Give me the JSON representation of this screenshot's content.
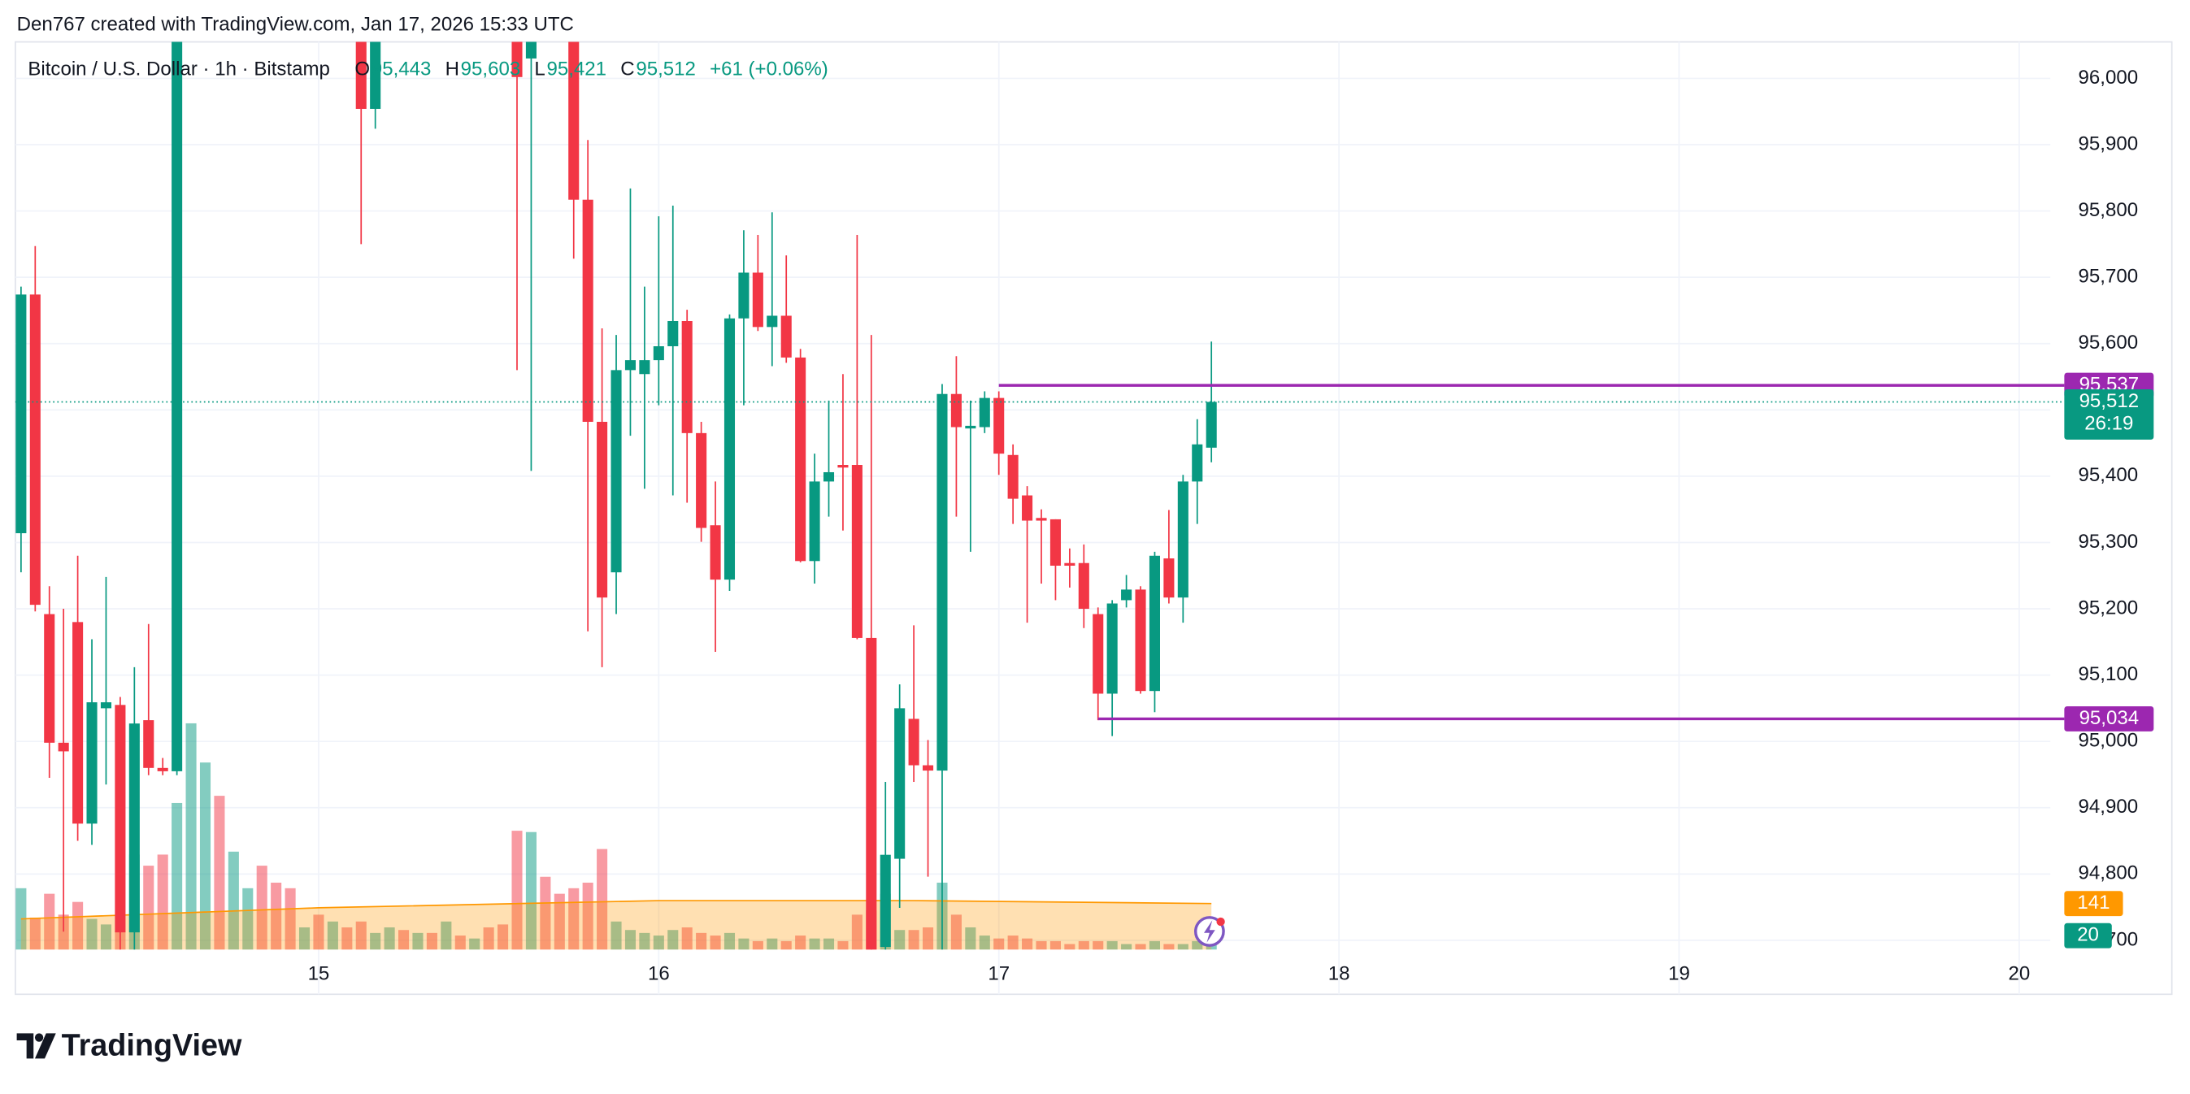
{
  "header": "Den767 created with TradingView.com, Jan 17, 2026 15:33 UTC",
  "footer": {
    "brand": "TradingView"
  },
  "chart_data": {
    "type": "candlestick",
    "title": "Bitcoin / U.S. Dollar · 1h · Bitstamp",
    "ohlc_legend": [
      {
        "key": "O",
        "value": 95443,
        "label": "95,443"
      },
      {
        "key": "H",
        "value": 95603,
        "label": "95,603"
      },
      {
        "key": "L",
        "value": 95421,
        "label": "95,421"
      },
      {
        "key": "C",
        "value": 95512,
        "label": "95,512"
      }
    ],
    "change": "+61 (+0.06%)",
    "up_color": "#089981",
    "down_color": "#f23645",
    "x": [
      3,
      4,
      5,
      6,
      7,
      8,
      9,
      10,
      11,
      12,
      13,
      14,
      27,
      28,
      38,
      39,
      42,
      43,
      44,
      45,
      46,
      47,
      48,
      49,
      50,
      51,
      52,
      53,
      54,
      55,
      56,
      57,
      58,
      59,
      60,
      61,
      62,
      63,
      64,
      65,
      66,
      67,
      68,
      69,
      70,
      71,
      72,
      73,
      74,
      75,
      76,
      77,
      78,
      79,
      80,
      81,
      82,
      83,
      84,
      85,
      86,
      87
    ],
    "open": [
      95314,
      95674,
      95192,
      94998,
      95180,
      94876,
      95050,
      95055,
      94712,
      95032,
      94960,
      94955,
      96060,
      95954,
      96060,
      96030,
      96060,
      95817,
      95482,
      95255,
      95560,
      95554,
      95575,
      95596,
      95634,
      95465,
      95326,
      95244,
      95638,
      95707,
      95625,
      95642,
      95579,
      95272,
      95392,
      95417,
      95417,
      95156,
      94690,
      94823,
      95034,
      94964,
      94956,
      95524,
      95472,
      95474,
      95518,
      95432,
      95371,
      95337,
      95335,
      95269,
      95269,
      95192,
      95072,
      95213,
      95229,
      95076,
      95276,
      95217,
      95392,
      95443
    ],
    "high": [
      95686,
      95747,
      95234,
      95200,
      95280,
      95154,
      95248,
      95067,
      95112,
      95177,
      94975,
      96100,
      96100,
      96100,
      96100,
      96100,
      96100,
      95907,
      95623,
      95613,
      95834,
      95686,
      95792,
      95808,
      95651,
      95482,
      95392,
      95644,
      95771,
      95764,
      95798,
      95733,
      95592,
      95434,
      95514,
      95554,
      95764,
      95613,
      94939,
      95086,
      95175,
      95002,
      95539,
      95581,
      95514,
      95528,
      95528,
      95448,
      95385,
      95350,
      95335,
      95291,
      95297,
      95202,
      95213,
      95251,
      95234,
      95286,
      95349,
      95402,
      95486,
      95603
    ],
    "low": [
      95255,
      95196,
      94945,
      94713,
      94850,
      94844,
      94935,
      94686,
      94686,
      94949,
      94949,
      94949,
      95750,
      95924,
      95560,
      95408,
      95728,
      95166,
      95112,
      95192,
      95461,
      95381,
      95507,
      95371,
      95360,
      95301,
      95135,
      95227,
      95507,
      95619,
      95566,
      95571,
      95270,
      95238,
      95339,
      95318,
      95154,
      94680,
      94686,
      94749,
      94939,
      94796,
      94686,
      95339,
      95286,
      95465,
      95402,
      95328,
      95179,
      95238,
      95213,
      95232,
      95171,
      95032,
      95008,
      95202,
      95072,
      95044,
      95208,
      95179,
      95328,
      95421
    ],
    "close": [
      95674,
      95206,
      94998,
      94985,
      94876,
      95059,
      95059,
      94712,
      95027,
      94960,
      94955,
      96060,
      95954,
      96060,
      96002,
      96060,
      95817,
      95482,
      95217,
      95560,
      95575,
      95575,
      95596,
      95634,
      95465,
      95322,
      95244,
      95638,
      95707,
      95625,
      95642,
      95579,
      95272,
      95392,
      95406,
      95413,
      95156,
      94686,
      94829,
      95050,
      94964,
      94956,
      95524,
      95474,
      95476,
      95518,
      95434,
      95366,
      95333,
      95333,
      95265,
      95265,
      95200,
      95072,
      95208,
      95229,
      95076,
      95280,
      95217,
      95392,
      95448,
      95512
    ],
    "xlim": [
      2.6,
      146.2
    ],
    "xticks": [
      {
        "value": 24,
        "label": "15"
      },
      {
        "value": 48,
        "label": "16"
      },
      {
        "value": 72,
        "label": "17"
      },
      {
        "value": 96,
        "label": "18"
      },
      {
        "value": 120,
        "label": "19"
      },
      {
        "value": 144,
        "label": "20"
      }
    ],
    "ylim": [
      94686,
      96055
    ],
    "yticks": [
      {
        "value": 94700,
        "label": "94,700"
      },
      {
        "value": 94800,
        "label": "94,800"
      },
      {
        "value": 94900,
        "label": "94,900"
      },
      {
        "value": 95000,
        "label": "95,000"
      },
      {
        "value": 95100,
        "label": "95,100"
      },
      {
        "value": 95200,
        "label": "95,200"
      },
      {
        "value": 95300,
        "label": "95,300"
      },
      {
        "value": 95400,
        "label": "95,400"
      },
      {
        "value": 95500,
        "label": "95,500"
      },
      {
        "value": 95600,
        "label": "95,600"
      },
      {
        "value": 95700,
        "label": "95,700"
      },
      {
        "value": 95800,
        "label": "95,800"
      },
      {
        "value": 95900,
        "label": "95,900"
      },
      {
        "value": 96000,
        "label": "96,000"
      }
    ],
    "grid": true,
    "price_lines": [
      {
        "value": 95537,
        "label": "95,537",
        "x": 72,
        "color": "#9c27b0"
      },
      {
        "value": 95034,
        "label": "95,034",
        "x": 79,
        "color": "#9c27b0"
      }
    ],
    "last_price": {
      "value": 95512,
      "label": "95,512",
      "countdown": "26:19",
      "color": "#089981"
    },
    "volume": {
      "vlim": [
        0,
        2780
      ],
      "opacity": 0.5,
      "up": {
        "color": "#089981",
        "x": [
          3,
          8,
          9,
          11,
          14,
          15,
          16,
          18,
          19,
          23,
          25,
          28,
          29,
          31,
          33,
          35,
          39,
          45,
          46,
          47,
          48,
          49,
          53,
          54,
          56,
          59,
          60,
          64,
          65,
          68,
          70,
          71,
          80,
          81,
          83,
          85,
          86,
          87
        ],
        "values": [
          188,
          94,
          77,
          291,
          449,
          693,
          573,
          300,
          188,
          68,
          86,
          51,
          68,
          51,
          86,
          34,
          360,
          86,
          60,
          51,
          43,
          60,
          51,
          34,
          34,
          34,
          34,
          171,
          60,
          205,
          68,
          43,
          26,
          17,
          26,
          17,
          26,
          20
        ]
      },
      "down": {
        "color": "#f23645",
        "x": [
          4,
          5,
          6,
          7,
          10,
          12,
          13,
          17,
          20,
          21,
          22,
          24,
          26,
          27,
          30,
          32,
          34,
          36,
          37,
          38,
          40,
          41,
          42,
          43,
          44,
          50,
          51,
          52,
          55,
          57,
          58,
          61,
          62,
          63,
          66,
          67,
          69,
          72,
          73,
          74,
          75,
          76,
          77,
          78,
          79,
          82,
          84
        ],
        "values": [
          98,
          171,
          107,
          146,
          56,
          257,
          291,
          471,
          257,
          205,
          188,
          107,
          68,
          86,
          60,
          51,
          43,
          68,
          77,
          364,
          223,
          171,
          188,
          205,
          308,
          68,
          51,
          43,
          26,
          26,
          43,
          26,
          107,
          120,
          60,
          68,
          107,
          34,
          43,
          34,
          26,
          26,
          17,
          26,
          26,
          17,
          17
        ]
      }
    },
    "volume_ma": {
      "color": "#ff9800",
      "x": [
        3,
        24,
        48,
        66,
        87
      ],
      "values": [
        94,
        128,
        150,
        150,
        141
      ]
    }
  }
}
